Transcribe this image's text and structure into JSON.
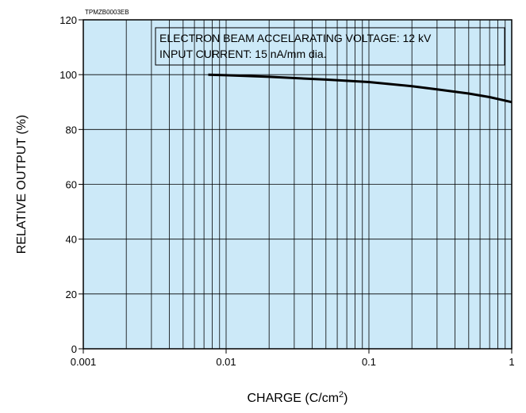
{
  "chart_data": {
    "type": "line",
    "figure_code": "TPMZB0003EB",
    "xlabel": "CHARGE (C/cm2)",
    "ylabel": "RELATIVE OUTPUT (%)",
    "xscale": "log",
    "xlim": [
      0.001,
      1
    ],
    "ylim": [
      0,
      120
    ],
    "x_ticks": [
      0.001,
      0.01,
      0.1,
      1
    ],
    "x_tick_labels": [
      "0.001",
      "0.01",
      "0.1",
      "1"
    ],
    "y_ticks": [
      0,
      20,
      40,
      60,
      80,
      100,
      120
    ],
    "y_tick_labels": [
      "0",
      "20",
      "40",
      "60",
      "80",
      "100",
      "120"
    ],
    "grid": true,
    "background_color": "#cce9f8",
    "line_color": "#000000",
    "annotation_lines": [
      "ELECTRON BEAM ACCELARATING VOLTAGE: 12 kV",
      "INPUT CURRENT: 15 nA/mm dia."
    ],
    "series": [
      {
        "x": [
          0.0075,
          0.01,
          0.02,
          0.05,
          0.1,
          0.2,
          0.3,
          0.5,
          0.7,
          1.0
        ],
        "y": [
          100,
          99.8,
          99.2,
          98.2,
          97.3,
          95.8,
          94.6,
          93.1,
          91.8,
          90.0
        ]
      }
    ]
  }
}
